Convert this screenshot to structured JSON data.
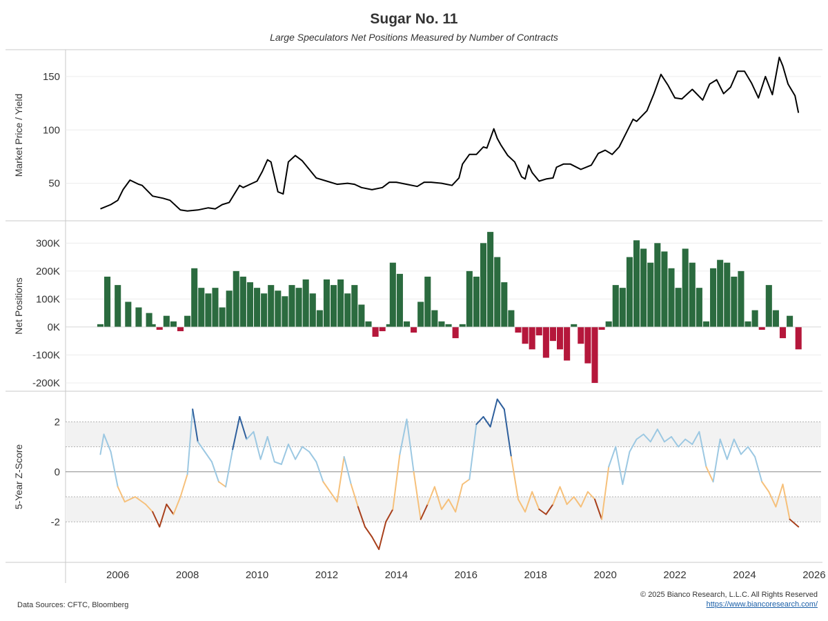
{
  "title": "Sugar No. 11",
  "subtitle": "Large Speculators Net Positions Measured by Number of Contracts",
  "footer": {
    "sources": "Data Sources: CFTC, Bloomberg",
    "copyright": "© 2025 Bianco Research, L.L.C. All Rights Reserved",
    "link": "https://www.biancoresearch.com/"
  },
  "colors": {
    "price_line": "#000000",
    "positive": "#2b6b3f",
    "negative": "#b5173b",
    "z_high": "#2e5f9c",
    "z_mid_high": "#9cc8e2",
    "z_mid_low": "#f6c07a",
    "z_low": "#a8401c"
  },
  "chart_data": [
    {
      "type": "line",
      "ylabel": "Market Price / Yield",
      "ylim": [
        20,
        170
      ],
      "yticks": [
        50,
        100,
        150
      ],
      "grid": true,
      "x": [
        2005.5,
        2005.8,
        2006.0,
        2006.15,
        2006.35,
        2006.6,
        2006.7,
        2007.0,
        2007.3,
        2007.5,
        2007.8,
        2008.0,
        2008.3,
        2008.6,
        2008.8,
        2009.0,
        2009.2,
        2009.5,
        2009.6,
        2009.8,
        2010.0,
        2010.15,
        2010.3,
        2010.4,
        2010.6,
        2010.75,
        2010.9,
        2011.1,
        2011.3,
        2011.5,
        2011.7,
        2012.0,
        2012.3,
        2012.6,
        2012.8,
        2013.0,
        2013.3,
        2013.6,
        2013.8,
        2014.0,
        2014.3,
        2014.6,
        2014.8,
        2015.0,
        2015.3,
        2015.6,
        2015.8,
        2015.9,
        2016.1,
        2016.3,
        2016.5,
        2016.6,
        2016.8,
        2016.9,
        2017.0,
        2017.2,
        2017.4,
        2017.6,
        2017.7,
        2017.8,
        2017.9,
        2018.1,
        2018.3,
        2018.5,
        2018.6,
        2018.8,
        2019.0,
        2019.3,
        2019.6,
        2019.8,
        2020.0,
        2020.2,
        2020.4,
        2020.6,
        2020.8,
        2020.9,
        2021.2,
        2021.4,
        2021.6,
        2021.8,
        2022.0,
        2022.2,
        2022.5,
        2022.8,
        2023.0,
        2023.2,
        2023.4,
        2023.6,
        2023.8,
        2024.0,
        2024.2,
        2024.4,
        2024.6,
        2024.8,
        2025.0,
        2025.1,
        2025.25,
        2025.45,
        2025.55
      ],
      "y": [
        26,
        30,
        34,
        44,
        53,
        49,
        48,
        38,
        36,
        34,
        25,
        24,
        25,
        27,
        26,
        30,
        32,
        48,
        46,
        49,
        52,
        61,
        72,
        70,
        42,
        40,
        70,
        76,
        71,
        63,
        55,
        52,
        49,
        50,
        49,
        46,
        44,
        46,
        51,
        51,
        49,
        47,
        51,
        51,
        50,
        48,
        55,
        68,
        77,
        77,
        84,
        83,
        101,
        92,
        86,
        76,
        70,
        56,
        54,
        67,
        60,
        52,
        54,
        55,
        65,
        68,
        68,
        63,
        67,
        78,
        81,
        77,
        84,
        97,
        110,
        108,
        118,
        134,
        152,
        142,
        130,
        129,
        138,
        128,
        143,
        147,
        134,
        140,
        155,
        155,
        144,
        130,
        150,
        133,
        168,
        160,
        143,
        132,
        116
      ]
    },
    {
      "type": "area",
      "ylabel": "Net Positions",
      "ylim": [
        -210000,
        360000
      ],
      "yticks": [
        300000,
        200000,
        100000,
        0,
        -100000,
        -200000
      ],
      "ytick_labels": [
        "300K",
        "200K",
        "100K",
        "0K",
        "-100K",
        "-200K"
      ],
      "grid": true,
      "x": [
        2005.5,
        2005.7,
        2006.0,
        2006.3,
        2006.6,
        2006.9,
        2007.0,
        2007.2,
        2007.4,
        2007.6,
        2007.8,
        2008.0,
        2008.2,
        2008.4,
        2008.6,
        2008.8,
        2009.0,
        2009.2,
        2009.4,
        2009.6,
        2009.8,
        2010.0,
        2010.2,
        2010.4,
        2010.6,
        2010.8,
        2011.0,
        2011.2,
        2011.4,
        2011.6,
        2011.8,
        2012.0,
        2012.2,
        2012.4,
        2012.6,
        2012.8,
        2013.0,
        2013.2,
        2013.4,
        2013.6,
        2013.8,
        2013.9,
        2014.1,
        2014.3,
        2014.5,
        2014.7,
        2014.9,
        2015.1,
        2015.3,
        2015.5,
        2015.7,
        2015.9,
        2016.1,
        2016.3,
        2016.5,
        2016.7,
        2016.9,
        2017.1,
        2017.3,
        2017.5,
        2017.7,
        2017.9,
        2018.1,
        2018.3,
        2018.5,
        2018.7,
        2018.9,
        2019.1,
        2019.3,
        2019.5,
        2019.7,
        2019.9,
        2020.1,
        2020.3,
        2020.5,
        2020.7,
        2020.9,
        2021.1,
        2021.3,
        2021.5,
        2021.7,
        2021.9,
        2022.1,
        2022.3,
        2022.5,
        2022.7,
        2022.9,
        2023.1,
        2023.3,
        2023.5,
        2023.7,
        2023.9,
        2024.1,
        2024.3,
        2024.5,
        2024.7,
        2024.9,
        2025.1,
        2025.3,
        2025.55
      ],
      "y": [
        10000,
        180000,
        150000,
        90000,
        70000,
        50000,
        10000,
        -10000,
        40000,
        20000,
        -15000,
        40000,
        210000,
        140000,
        120000,
        140000,
        70000,
        130000,
        200000,
        180000,
        160000,
        140000,
        120000,
        150000,
        130000,
        110000,
        150000,
        140000,
        170000,
        120000,
        60000,
        170000,
        150000,
        170000,
        120000,
        150000,
        80000,
        20000,
        -35000,
        -15000,
        10000,
        230000,
        190000,
        20000,
        -20000,
        90000,
        180000,
        60000,
        20000,
        10000,
        -40000,
        10000,
        200000,
        180000,
        300000,
        340000,
        250000,
        160000,
        60000,
        -20000,
        -60000,
        -80000,
        -30000,
        -110000,
        -50000,
        -80000,
        -120000,
        10000,
        -60000,
        -130000,
        -200000,
        -10000,
        20000,
        150000,
        140000,
        250000,
        310000,
        280000,
        230000,
        300000,
        270000,
        210000,
        140000,
        280000,
        230000,
        140000,
        20000,
        210000,
        240000,
        230000,
        180000,
        200000,
        20000,
        60000,
        -10000,
        150000,
        60000,
        -40000,
        40000,
        -80000
      ]
    },
    {
      "type": "line",
      "ylabel": "5-Year Z-Score",
      "ylim": [
        -3.4,
        3.0
      ],
      "yticks": [
        2,
        0,
        -2
      ],
      "bands": [
        [
          1,
          2
        ],
        [
          -2,
          -1
        ]
      ],
      "grid": true,
      "x": [
        2005.5,
        2005.6,
        2005.8,
        2006.0,
        2006.2,
        2006.5,
        2006.8,
        2007.0,
        2007.2,
        2007.4,
        2007.6,
        2007.8,
        2008.0,
        2008.15,
        2008.3,
        2008.5,
        2008.7,
        2008.9,
        2009.1,
        2009.3,
        2009.5,
        2009.7,
        2009.9,
        2010.1,
        2010.3,
        2010.5,
        2010.7,
        2010.9,
        2011.1,
        2011.3,
        2011.5,
        2011.7,
        2011.9,
        2012.1,
        2012.3,
        2012.5,
        2012.7,
        2012.9,
        2013.1,
        2013.3,
        2013.5,
        2013.7,
        2013.9,
        2014.1,
        2014.3,
        2014.5,
        2014.7,
        2014.9,
        2015.1,
        2015.3,
        2015.5,
        2015.7,
        2015.9,
        2016.1,
        2016.3,
        2016.5,
        2016.7,
        2016.9,
        2017.1,
        2017.3,
        2017.5,
        2017.7,
        2017.9,
        2018.1,
        2018.3,
        2018.5,
        2018.7,
        2018.9,
        2019.1,
        2019.3,
        2019.5,
        2019.7,
        2019.9,
        2020.1,
        2020.3,
        2020.5,
        2020.7,
        2020.9,
        2021.1,
        2021.3,
        2021.5,
        2021.7,
        2021.9,
        2022.1,
        2022.3,
        2022.5,
        2022.7,
        2022.9,
        2023.1,
        2023.3,
        2023.5,
        2023.7,
        2023.9,
        2024.1,
        2024.3,
        2024.5,
        2024.7,
        2024.9,
        2025.1,
        2025.3,
        2025.55
      ],
      "y": [
        0.7,
        1.5,
        0.8,
        -0.6,
        -1.2,
        -1.0,
        -1.3,
        -1.6,
        -2.2,
        -1.3,
        -1.7,
        -1.0,
        -0.1,
        2.5,
        1.2,
        0.8,
        0.4,
        -0.4,
        -0.6,
        0.9,
        2.2,
        1.3,
        1.6,
        0.5,
        1.4,
        0.4,
        0.3,
        1.1,
        0.5,
        1.0,
        0.8,
        0.4,
        -0.4,
        -0.8,
        -1.2,
        0.6,
        -0.5,
        -1.4,
        -2.2,
        -2.6,
        -3.1,
        -2.0,
        -1.5,
        0.7,
        2.1,
        0.0,
        -1.9,
        -1.3,
        -0.6,
        -1.5,
        -1.1,
        -1.6,
        -0.5,
        -0.3,
        1.9,
        2.2,
        1.8,
        2.9,
        2.5,
        0.6,
        -1.1,
        -1.6,
        -0.8,
        -1.5,
        -1.7,
        -1.3,
        -0.6,
        -1.3,
        -1.0,
        -1.4,
        -0.8,
        -1.1,
        -1.9,
        0.2,
        1.0,
        -0.5,
        0.8,
        1.3,
        1.5,
        1.2,
        1.7,
        1.2,
        1.4,
        1.0,
        1.3,
        1.1,
        1.6,
        0.2,
        -0.4,
        1.3,
        0.5,
        1.3,
        0.7,
        1.0,
        0.6,
        -0.4,
        -0.8,
        -1.4,
        -0.5,
        -1.9,
        -2.2
      ]
    }
  ],
  "x_axis": {
    "ticks": [
      2006,
      2008,
      2010,
      2012,
      2014,
      2016,
      2018,
      2020,
      2022,
      2024,
      2026
    ],
    "tick_labels": [
      "2006",
      "2008",
      "2010",
      "2012",
      "2014",
      "2016",
      "2018",
      "2020",
      "2022",
      "2024",
      "2026"
    ],
    "range": [
      2004.5,
      2026.2
    ]
  }
}
